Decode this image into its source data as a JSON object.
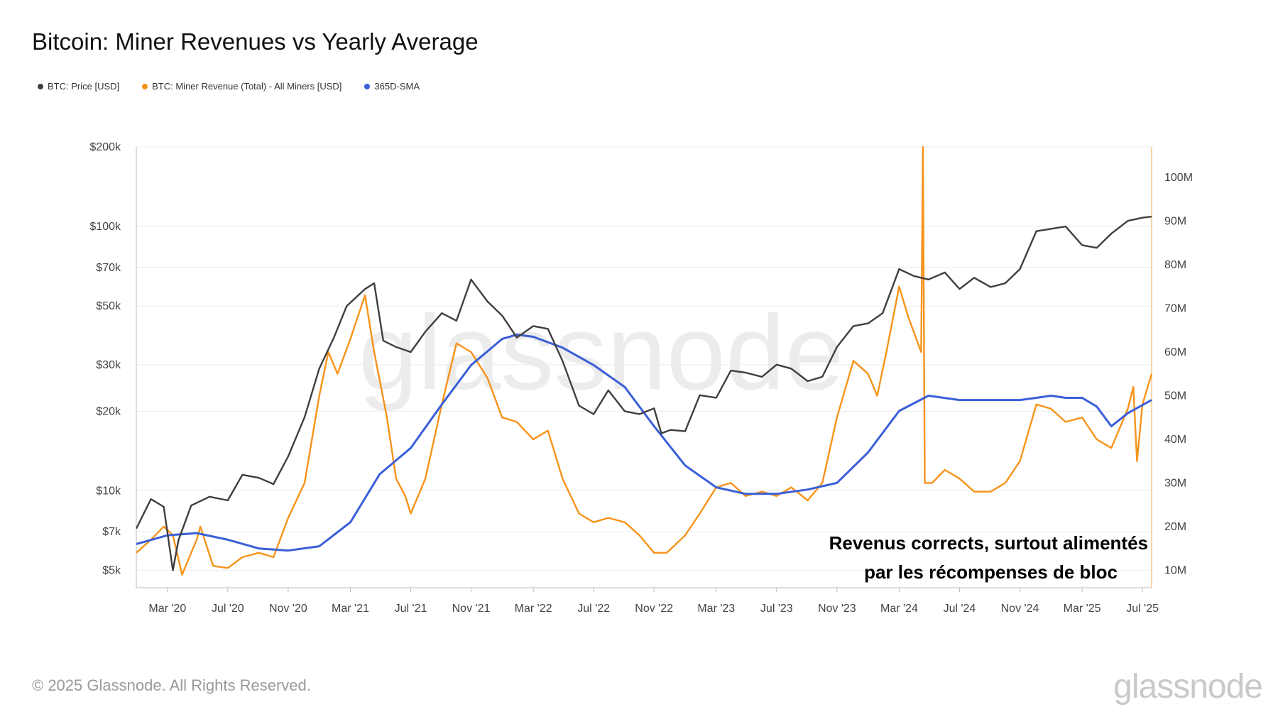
{
  "title": "Bitcoin: Miner Revenues vs Yearly Average",
  "legend": [
    {
      "label": "BTC: Price [USD]",
      "color": "#3f3f3f"
    },
    {
      "label": "BTC: Miner Revenue (Total) - All Miners [USD]",
      "color": "#f7931a"
    },
    {
      "label": "365D-SMA",
      "color": "#3a5fd8"
    }
  ],
  "watermark": "glassnode",
  "footer": "© 2025 Glassnode. All Rights Reserved.",
  "brand": "glassnode",
  "chart_data": {
    "type": "line",
    "title": "Bitcoin: Miner Revenues vs Yearly Average",
    "x_range": [
      2020.0,
      2025.55
    ],
    "x_ticks": [
      {
        "label": "Mar '20",
        "t": 2020.17
      },
      {
        "label": "Jul '20",
        "t": 2020.5
      },
      {
        "label": "Nov '20",
        "t": 2020.83
      },
      {
        "label": "Mar '21",
        "t": 2021.17
      },
      {
        "label": "Jul '21",
        "t": 2021.5
      },
      {
        "label": "Nov '21",
        "t": 2021.83
      },
      {
        "label": "Mar '22",
        "t": 2022.17
      },
      {
        "label": "Jul '22",
        "t": 2022.5
      },
      {
        "label": "Nov '22",
        "t": 2022.83
      },
      {
        "label": "Mar '23",
        "t": 2023.17
      },
      {
        "label": "Jul '23",
        "t": 2023.5
      },
      {
        "label": "Nov '23",
        "t": 2023.83
      },
      {
        "label": "Mar '24",
        "t": 2024.17
      },
      {
        "label": "Jul '24",
        "t": 2024.5
      },
      {
        "label": "Nov '24",
        "t": 2024.83
      },
      {
        "label": "Mar '25",
        "t": 2025.17
      },
      {
        "label": "Jul '25",
        "t": 2025.5
      }
    ],
    "y_left": {
      "scale": "log",
      "range": [
        4300,
        200000
      ],
      "ticks": [
        {
          "label": "$200k",
          "v": 200000
        },
        {
          "label": "$100k",
          "v": 100000
        },
        {
          "label": "$70k",
          "v": 70000
        },
        {
          "label": "$50k",
          "v": 50000
        },
        {
          "label": "$30k",
          "v": 30000
        },
        {
          "label": "$20k",
          "v": 20000
        },
        {
          "label": "$10k",
          "v": 10000
        },
        {
          "label": "$7k",
          "v": 7000
        },
        {
          "label": "$5k",
          "v": 5000
        }
      ]
    },
    "y_right": {
      "scale": "linear",
      "range": [
        6000000,
        107000000
      ],
      "ticks": [
        {
          "label": "100M",
          "v": 100000000
        },
        {
          "label": "90M",
          "v": 90000000
        },
        {
          "label": "80M",
          "v": 80000000
        },
        {
          "label": "70M",
          "v": 70000000
        },
        {
          "label": "60M",
          "v": 60000000
        },
        {
          "label": "50M",
          "v": 50000000
        },
        {
          "label": "40M",
          "v": 40000000
        },
        {
          "label": "30M",
          "v": 30000000
        },
        {
          "label": "20M",
          "v": 20000000
        },
        {
          "label": "10M",
          "v": 10000000
        }
      ]
    },
    "series": [
      {
        "name": "BTC: Price [USD]",
        "axis": "left",
        "color": "#3f3f3f",
        "t": [
          2020.0,
          2020.08,
          2020.15,
          2020.2,
          2020.23,
          2020.3,
          2020.4,
          2020.5,
          2020.58,
          2020.67,
          2020.75,
          2020.83,
          2020.92,
          2021.0,
          2021.08,
          2021.15,
          2021.25,
          2021.3,
          2021.35,
          2021.42,
          2021.5,
          2021.58,
          2021.67,
          2021.75,
          2021.83,
          2021.92,
          2022.0,
          2022.08,
          2022.17,
          2022.25,
          2022.33,
          2022.42,
          2022.5,
          2022.58,
          2022.67,
          2022.75,
          2022.83,
          2022.87,
          2022.92,
          2023.0,
          2023.08,
          2023.17,
          2023.25,
          2023.33,
          2023.42,
          2023.5,
          2023.58,
          2023.67,
          2023.75,
          2023.83,
          2023.92,
          2024.0,
          2024.08,
          2024.17,
          2024.25,
          2024.33,
          2024.42,
          2024.5,
          2024.58,
          2024.67,
          2024.75,
          2024.83,
          2024.92,
          2025.0,
          2025.08,
          2025.17,
          2025.25,
          2025.33,
          2025.42,
          2025.5,
          2025.55
        ],
        "v": [
          7200,
          9300,
          8700,
          5000,
          6500,
          8800,
          9500,
          9200,
          11500,
          11200,
          10600,
          13500,
          19000,
          29000,
          38000,
          50000,
          58000,
          61000,
          37000,
          35000,
          33500,
          40000,
          47000,
          44000,
          63000,
          52000,
          46000,
          38000,
          42000,
          41000,
          31000,
          21000,
          19500,
          24000,
          20000,
          19500,
          20500,
          16500,
          17000,
          16800,
          23000,
          22500,
          28500,
          28000,
          27000,
          30000,
          29000,
          26000,
          27000,
          35000,
          42000,
          43000,
          47000,
          69000,
          65000,
          63000,
          67000,
          58000,
          64000,
          59000,
          61000,
          69000,
          96000,
          98000,
          100000,
          85000,
          83000,
          94000,
          105000,
          108000,
          109000
        ]
      },
      {
        "name": "BTC: Miner Revenue (Total) - All Miners [USD]",
        "axis": "right",
        "color": "#f7931a",
        "t": [
          2020.0,
          2020.08,
          2020.15,
          2020.2,
          2020.25,
          2020.33,
          2020.35,
          2020.42,
          2020.5,
          2020.58,
          2020.67,
          2020.75,
          2020.83,
          2020.92,
          2021.0,
          2021.05,
          2021.1,
          2021.17,
          2021.25,
          2021.3,
          2021.37,
          2021.42,
          2021.47,
          2021.5,
          2021.58,
          2021.67,
          2021.75,
          2021.83,
          2021.92,
          2022.0,
          2022.08,
          2022.17,
          2022.25,
          2022.33,
          2022.42,
          2022.5,
          2022.58,
          2022.67,
          2022.75,
          2022.83,
          2022.9,
          2023.0,
          2023.08,
          2023.17,
          2023.25,
          2023.33,
          2023.42,
          2023.5,
          2023.58,
          2023.67,
          2023.75,
          2023.83,
          2023.92,
          2024.0,
          2024.05,
          2024.1,
          2024.17,
          2024.22,
          2024.29,
          2024.3,
          2024.31,
          2024.35,
          2024.42,
          2024.5,
          2024.58,
          2024.67,
          2024.75,
          2024.83,
          2024.92,
          2025.0,
          2025.08,
          2025.17,
          2025.25,
          2025.33,
          2025.42,
          2025.45,
          2025.47,
          2025.5,
          2025.55
        ],
        "v": [
          14000000,
          17000000,
          20000000,
          18000000,
          9000000,
          17000000,
          20000000,
          11000000,
          10500000,
          13000000,
          14000000,
          13000000,
          22000000,
          30000000,
          50000000,
          60000000,
          55000000,
          63000000,
          73000000,
          60000000,
          45000000,
          31000000,
          27000000,
          23000000,
          31000000,
          48000000,
          62000000,
          60000000,
          54000000,
          45000000,
          44000000,
          40000000,
          42000000,
          31000000,
          23000000,
          21000000,
          22000000,
          21000000,
          18000000,
          14000000,
          14000000,
          18000000,
          23000000,
          29000000,
          30000000,
          27000000,
          28000000,
          27000000,
          29000000,
          26000000,
          30000000,
          45000000,
          58000000,
          55000000,
          50000000,
          60000000,
          75000000,
          68000000,
          60000000,
          107000000,
          30000000,
          30000000,
          33000000,
          31000000,
          28000000,
          28000000,
          30000000,
          35000000,
          48000000,
          47000000,
          44000000,
          45000000,
          40000000,
          38000000,
          47000000,
          52000000,
          35000000,
          48000000,
          55000000
        ]
      },
      {
        "name": "365D-SMA",
        "axis": "right",
        "color": "#3a5fd8",
        "t": [
          2020.0,
          2020.17,
          2020.33,
          2020.5,
          2020.67,
          2020.83,
          2021.0,
          2021.17,
          2021.33,
          2021.5,
          2021.67,
          2021.83,
          2022.0,
          2022.08,
          2022.17,
          2022.33,
          2022.5,
          2022.67,
          2022.83,
          2023.0,
          2023.17,
          2023.33,
          2023.5,
          2023.67,
          2023.83,
          2024.0,
          2024.17,
          2024.33,
          2024.5,
          2024.67,
          2024.83,
          2024.92,
          2025.0,
          2025.08,
          2025.17,
          2025.25,
          2025.33,
          2025.42,
          2025.55
        ],
        "v": [
          16000000,
          18000000,
          18500000,
          17000000,
          15000000,
          14500000,
          15500000,
          21000000,
          32000000,
          38000000,
          48000000,
          57000000,
          63000000,
          64000000,
          63500000,
          61000000,
          57000000,
          52000000,
          43000000,
          34000000,
          29000000,
          27500000,
          27500000,
          28500000,
          30000000,
          37000000,
          46500000,
          50000000,
          49000000,
          49000000,
          49000000,
          49500000,
          50000000,
          49500000,
          49500000,
          47500000,
          43000000,
          46000000,
          49000000
        ]
      }
    ],
    "annotation": [
      "Revenus corrects, surtout alimentés",
      "par les récompenses de bloc"
    ]
  }
}
